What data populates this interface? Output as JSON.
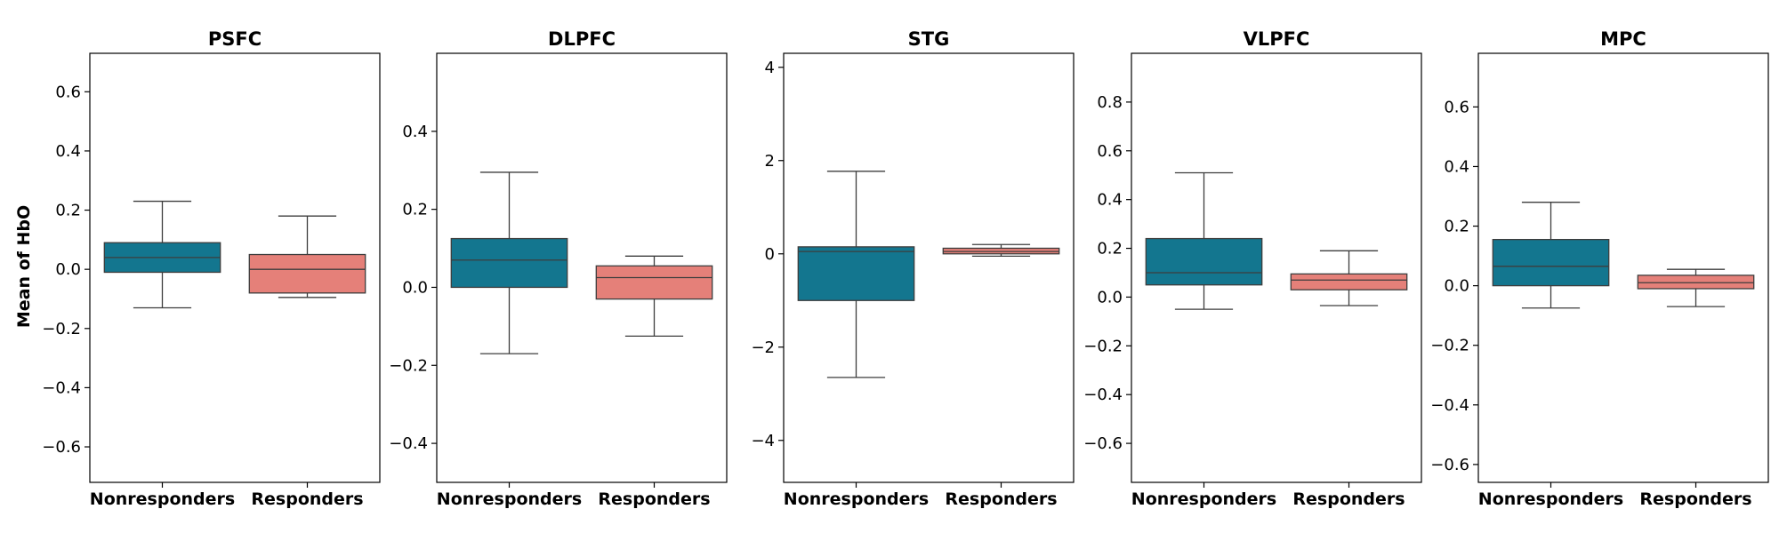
{
  "chart_data": {
    "type": "box",
    "ylabel": "Mean of HbO",
    "categories": [
      "Nonresponders",
      "Responders"
    ],
    "colors": {
      "Nonresponders": "#13768f",
      "Responders": "#e58079"
    },
    "panels": [
      {
        "title": "PSFC",
        "ylim": [
          -0.72,
          0.73
        ],
        "yticks": [
          -0.6,
          -0.4,
          -0.2,
          0.0,
          0.2,
          0.4,
          0.6
        ],
        "ytick_labels": [
          "−0.6",
          "−0.4",
          "−0.2",
          "0.0",
          "0.2",
          "0.4",
          "0.6"
        ],
        "boxes": [
          {
            "category": "Nonresponders",
            "whisker_low": -0.13,
            "q1": -0.01,
            "median": 0.04,
            "q3": 0.09,
            "whisker_high": 0.23
          },
          {
            "category": "Responders",
            "whisker_low": -0.095,
            "q1": -0.08,
            "median": 0.0,
            "q3": 0.05,
            "whisker_high": 0.18
          }
        ]
      },
      {
        "title": "DLPFC",
        "ylim": [
          -0.5,
          0.6
        ],
        "yticks": [
          -0.4,
          -0.2,
          0.0,
          0.2,
          0.4
        ],
        "ytick_labels": [
          "−0.4",
          "−0.2",
          "0.0",
          "0.2",
          "0.4"
        ],
        "boxes": [
          {
            "category": "Nonresponders",
            "whisker_low": -0.17,
            "q1": 0.0,
            "median": 0.07,
            "q3": 0.125,
            "whisker_high": 0.295
          },
          {
            "category": "Responders",
            "whisker_low": -0.125,
            "q1": -0.03,
            "median": 0.025,
            "q3": 0.055,
            "whisker_high": 0.08
          }
        ]
      },
      {
        "title": "STG",
        "ylim": [
          -4.9,
          4.3
        ],
        "yticks": [
          -4,
          -2,
          0,
          2,
          4
        ],
        "ytick_labels": [
          "−4",
          "−2",
          "0",
          "2",
          "4"
        ],
        "boxes": [
          {
            "category": "Nonresponders",
            "whisker_low": -2.65,
            "q1": -1.0,
            "median": 0.05,
            "q3": 0.15,
            "whisker_high": 1.77
          },
          {
            "category": "Responders",
            "whisker_low": -0.05,
            "q1": 0.0,
            "median": 0.05,
            "q3": 0.12,
            "whisker_high": 0.2
          }
        ]
      },
      {
        "title": "VLPFC",
        "ylim": [
          -0.76,
          1.0
        ],
        "yticks": [
          -0.6,
          -0.4,
          -0.2,
          0.0,
          0.2,
          0.4,
          0.6,
          0.8
        ],
        "ytick_labels": [
          "−0.6",
          "−0.4",
          "−0.2",
          "0.0",
          "0.2",
          "0.4",
          "0.6",
          "0.8"
        ],
        "boxes": [
          {
            "category": "Nonresponders",
            "whisker_low": -0.05,
            "q1": 0.05,
            "median": 0.1,
            "q3": 0.24,
            "whisker_high": 0.51
          },
          {
            "category": "Responders",
            "whisker_low": -0.035,
            "q1": 0.03,
            "median": 0.07,
            "q3": 0.095,
            "whisker_high": 0.19
          }
        ]
      },
      {
        "title": "MPC",
        "ylim": [
          -0.66,
          0.78
        ],
        "yticks": [
          -0.6,
          -0.4,
          -0.2,
          0.0,
          0.2,
          0.4,
          0.6
        ],
        "ytick_labels": [
          "−0.6",
          "−0.4",
          "−0.2",
          "0.0",
          "0.2",
          "0.4",
          "0.6"
        ],
        "boxes": [
          {
            "category": "Nonresponders",
            "whisker_low": -0.075,
            "q1": 0.0,
            "median": 0.065,
            "q3": 0.155,
            "whisker_high": 0.28
          },
          {
            "category": "Responders",
            "whisker_low": -0.07,
            "q1": -0.01,
            "median": 0.01,
            "q3": 0.035,
            "whisker_high": 0.055
          }
        ]
      }
    ]
  }
}
